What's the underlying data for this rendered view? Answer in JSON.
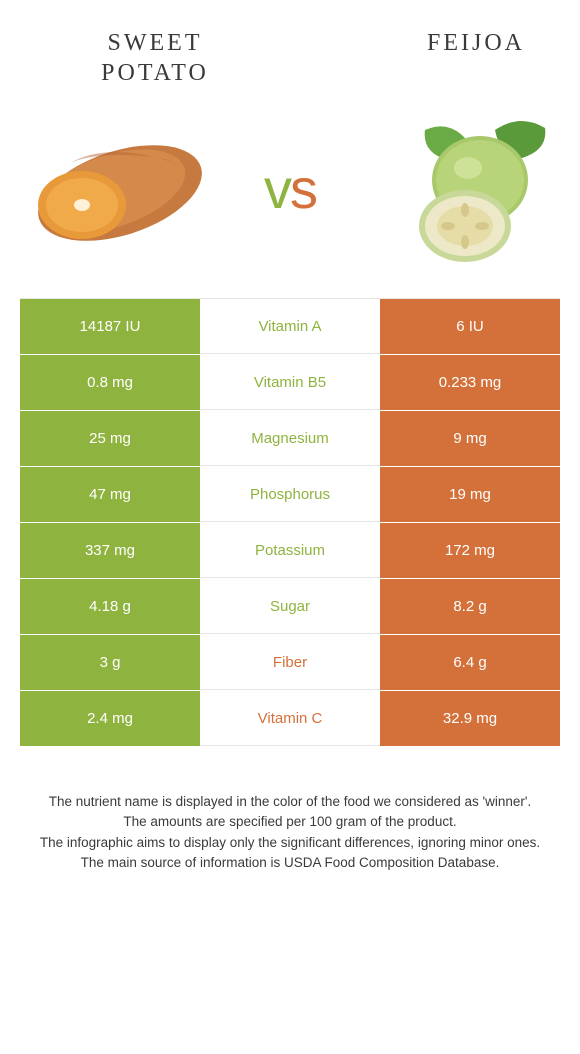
{
  "left": {
    "name": "Sweet potato",
    "color": "#8fb33f"
  },
  "right": {
    "name": "Feijoa",
    "color": "#d4713a"
  },
  "vs": "vs",
  "rows": [
    {
      "label": "Vitamin A",
      "left": "14187 IU",
      "right": "6 IU",
      "winner": "left"
    },
    {
      "label": "Vitamin B5",
      "left": "0.8 mg",
      "right": "0.233 mg",
      "winner": "left"
    },
    {
      "label": "Magnesium",
      "left": "25 mg",
      "right": "9 mg",
      "winner": "left"
    },
    {
      "label": "Phosphorus",
      "left": "47 mg",
      "right": "19 mg",
      "winner": "left"
    },
    {
      "label": "Potassium",
      "left": "337 mg",
      "right": "172 mg",
      "winner": "left"
    },
    {
      "label": "Sugar",
      "left": "4.18 g",
      "right": "8.2 g",
      "winner": "left"
    },
    {
      "label": "Fiber",
      "left": "3 g",
      "right": "6.4 g",
      "winner": "right"
    },
    {
      "label": "Vitamin C",
      "left": "2.4 mg",
      "right": "32.9 mg",
      "winner": "right"
    }
  ],
  "footer": {
    "line1": "The nutrient name is displayed in the color of the food we considered as 'winner'.",
    "line2": "The amounts are specified per 100 gram of the product.",
    "line3": "The infographic aims to display only the significant differences, ignoring minor ones.",
    "line4": "The main source of information is USDA Food Composition Database."
  }
}
